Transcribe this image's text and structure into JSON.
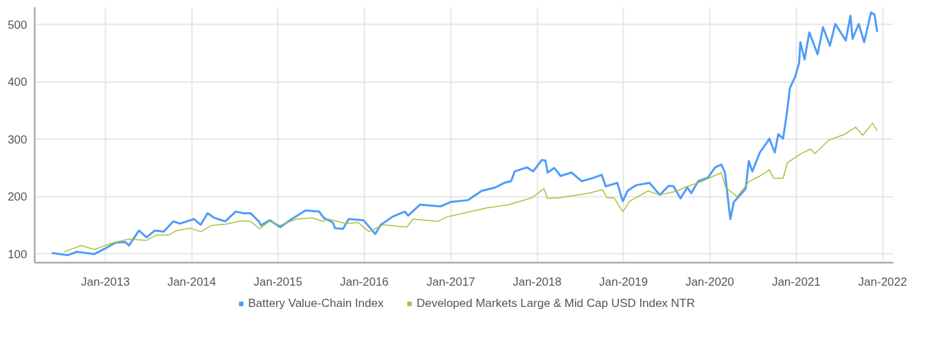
{
  "chart_data": {
    "type": "line",
    "xlim": [
      "2012-03-08",
      "2022-02-15"
    ],
    "ylim": [
      85,
      530
    ],
    "xticks": [
      {
        "value": "2013-01-01",
        "label": "Jan-2013"
      },
      {
        "value": "2014-01-01",
        "label": "Jan-2014"
      },
      {
        "value": "2015-01-01",
        "label": "Jan-2015"
      },
      {
        "value": "2016-01-01",
        "label": "Jan-2016"
      },
      {
        "value": "2017-01-01",
        "label": "Jan-2017"
      },
      {
        "value": "2018-01-01",
        "label": "Jan-2018"
      },
      {
        "value": "2019-01-01",
        "label": "Jan-2019"
      },
      {
        "value": "2020-01-01",
        "label": "Jan-2020"
      },
      {
        "value": "2021-01-01",
        "label": "Jan-2021"
      },
      {
        "value": "2022-01-01",
        "label": "Jan-2022"
      }
    ],
    "yticks": [
      100,
      200,
      300,
      400,
      500
    ],
    "grid": true,
    "legend": "bottom",
    "marker": "none",
    "line_style": "solid",
    "series": [
      {
        "name": "Battery Value-Chain Index",
        "color": "#4f9cf9",
        "x": [
          "2012-05-19",
          "2012-07-25",
          "2012-09-03",
          "2012-11-15",
          "2012-12-28",
          "2013-02-14",
          "2013-03-26",
          "2013-04-11",
          "2013-05-23",
          "2013-06-24",
          "2013-07-29",
          "2013-09-05",
          "2013-10-15",
          "2013-11-13",
          "2014-01-10",
          "2014-02-08",
          "2014-03-09",
          "2014-04-07",
          "2014-05-23",
          "2014-07-06",
          "2014-08-09",
          "2014-09-07",
          "2014-10-12",
          "2014-10-21",
          "2014-11-28",
          "2015-01-10",
          "2015-02-28",
          "2015-04-27",
          "2015-06-24",
          "2015-07-14",
          "2015-08-21",
          "2015-08-30",
          "2015-10-03",
          "2015-10-27",
          "2015-12-29",
          "2016-02-16",
          "2016-03-11",
          "2016-04-29",
          "2016-06-20",
          "2016-07-05",
          "2016-08-23",
          "2016-11-18",
          "2017-01-02",
          "2017-03-14",
          "2017-05-11",
          "2017-07-08",
          "2017-08-15",
          "2017-09-13",
          "2017-09-28",
          "2017-11-19",
          "2017-12-15",
          "2018-01-21",
          "2018-02-05",
          "2018-02-14",
          "2018-03-15",
          "2018-04-10",
          "2018-05-26",
          "2018-07-09",
          "2018-08-21",
          "2018-10-01",
          "2018-10-18",
          "2018-12-06",
          "2018-12-29",
          "2019-01-18",
          "2019-02-08",
          "2019-02-25",
          "2019-04-21",
          "2019-06-04",
          "2019-07-11",
          "2019-08-01",
          "2019-08-30",
          "2019-09-28",
          "2019-10-15",
          "2019-11-13",
          "2019-12-24",
          "2020-01-24",
          "2020-02-19",
          "2020-03-05",
          "2020-03-28",
          "2020-04-12",
          "2020-05-02",
          "2020-06-01",
          "2020-06-14",
          "2020-06-29",
          "2020-07-31",
          "2020-08-26",
          "2020-09-09",
          "2020-10-02",
          "2020-10-17",
          "2020-11-06",
          "2020-11-21",
          "2020-12-05",
          "2020-12-28",
          "2021-01-13",
          "2021-01-18",
          "2021-02-05",
          "2021-02-25",
          "2021-04-01",
          "2021-04-24",
          "2021-05-23",
          "2021-06-15",
          "2021-07-29",
          "2021-08-18",
          "2021-08-27",
          "2021-09-22",
          "2021-10-15",
          "2021-11-13",
          "2021-11-28",
          "2021-12-09"
        ],
        "values": [
          102,
          98,
          104,
          100,
          109,
          120,
          121,
          115,
          141,
          129,
          141,
          139,
          157,
          153,
          161,
          151,
          171,
          163,
          157,
          174,
          171,
          171,
          157,
          150,
          159,
          147,
          161,
          176,
          174,
          163,
          155,
          145,
          144,
          161,
          159,
          135,
          151,
          165,
          174,
          167,
          186,
          183,
          191,
          194,
          210,
          216,
          224,
          227,
          244,
          251,
          244,
          264,
          263,
          242,
          250,
          236,
          242,
          227,
          232,
          238,
          218,
          224,
          192,
          210,
          216,
          220,
          224,
          203,
          219,
          218,
          197,
          216,
          206,
          227,
          233,
          251,
          256,
          242,
          161,
          191,
          200,
          214,
          262,
          244,
          277,
          292,
          301,
          277,
          309,
          301,
          342,
          389,
          410,
          433,
          469,
          439,
          486,
          448,
          495,
          463,
          501,
          472,
          515,
          475,
          501,
          469,
          521,
          517,
          487
        ]
      },
      {
        "name": "Developed Markets Large & Mid Cap USD Index NTR",
        "color": "#a8c23a",
        "x": [
          "2012-07-10",
          "2012-09-21",
          "2012-11-15",
          "2013-02-05",
          "2013-04-10",
          "2013-06-24",
          "2013-08-04",
          "2013-09-25",
          "2013-10-30",
          "2013-12-27",
          "2014-02-08",
          "2014-03-26",
          "2014-05-23",
          "2014-08-01",
          "2014-09-07",
          "2014-10-15",
          "2014-11-25",
          "2015-01-10",
          "2015-03-20",
          "2015-05-26",
          "2015-07-09",
          "2015-08-01",
          "2015-10-18",
          "2015-12-06",
          "2016-01-21",
          "2016-03-20",
          "2016-06-29",
          "2016-07-25",
          "2016-11-06",
          "2016-12-17",
          "2017-03-14",
          "2017-05-29",
          "2017-09-04",
          "2017-12-09",
          "2018-01-30",
          "2018-02-14",
          "2018-04-04",
          "2018-08-07",
          "2018-10-04",
          "2018-10-24",
          "2018-11-22",
          "2018-12-29",
          "2019-01-27",
          "2019-04-15",
          "2019-06-04",
          "2019-08-18",
          "2019-09-16",
          "2019-11-25",
          "2020-01-02",
          "2020-02-19",
          "2020-03-08",
          "2020-04-26",
          "2020-06-14",
          "2020-07-31",
          "2020-09-09",
          "2020-09-27",
          "2020-11-06",
          "2020-11-24",
          "2021-01-21",
          "2021-03-03",
          "2021-03-20",
          "2021-05-17",
          "2021-07-26",
          "2021-09-09",
          "2021-10-09",
          "2021-11-19",
          "2021-12-09"
        ],
        "values": [
          104,
          115,
          108,
          120,
          126,
          124,
          133,
          133,
          141,
          145,
          139,
          150,
          152,
          158,
          157,
          144,
          157,
          150,
          161,
          163,
          157,
          161,
          153,
          155,
          139,
          151,
          147,
          161,
          157,
          165,
          173,
          180,
          186,
          198,
          214,
          197,
          198,
          206,
          212,
          198,
          198,
          174,
          192,
          210,
          203,
          210,
          216,
          226,
          233,
          242,
          216,
          200,
          226,
          236,
          247,
          232,
          232,
          259,
          275,
          283,
          275,
          298,
          309,
          321,
          307,
          328,
          315
        ]
      }
    ]
  }
}
